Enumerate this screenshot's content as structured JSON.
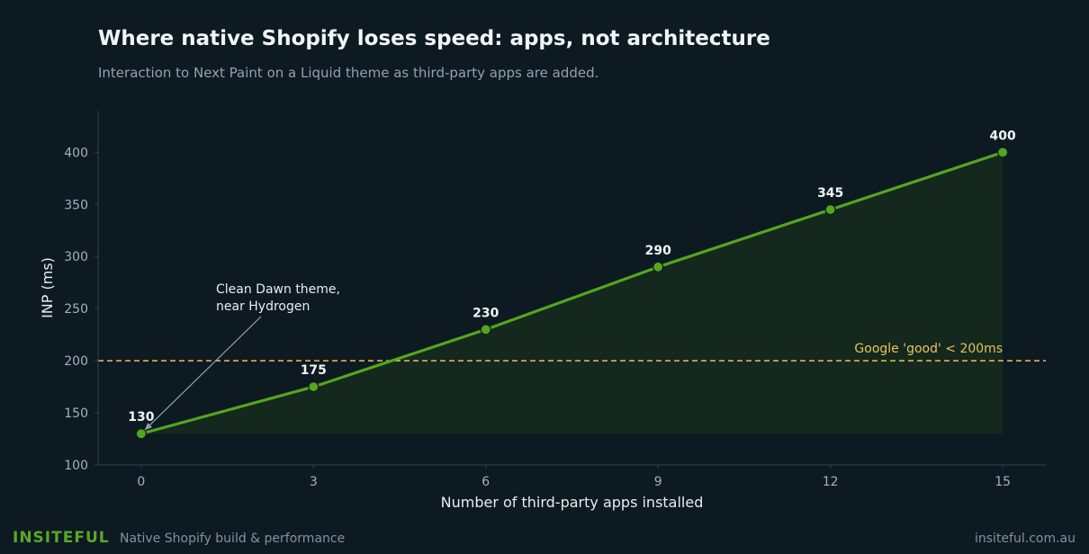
{
  "chart_data": {
    "type": "line",
    "title": "Where native Shopify loses speed: apps, not architecture",
    "subtitle": "Interaction to Next Paint on a Liquid theme as third-party apps are added.",
    "xlabel": "Number of third-party apps installed",
    "ylabel": "INP (ms)",
    "x": [
      0,
      3,
      6,
      9,
      12,
      15
    ],
    "values": [
      130,
      175,
      230,
      290,
      345,
      400
    ],
    "data_labels": [
      "130",
      "175",
      "230",
      "290",
      "345",
      "400"
    ],
    "x_ticks": [
      0,
      3,
      6,
      9,
      12,
      15
    ],
    "y_ticks": [
      100,
      150,
      200,
      250,
      300,
      350,
      400
    ],
    "xlim": [
      -0.75,
      15.75
    ],
    "ylim": [
      100,
      440
    ],
    "grid": false,
    "line_color": "#55a51e",
    "fill_color": "#15291f",
    "reference_line": {
      "value": 200,
      "label": "Google 'good' < 200ms",
      "color": "#e8c35a"
    },
    "annotation": {
      "x": 0,
      "y": 130,
      "text_lines": [
        "Clean Dawn theme,",
        "near Hydrogen"
      ]
    }
  },
  "footer": {
    "brand": "INSITEFUL",
    "tagline": "Native Shopify build & performance",
    "site": "insiteful.com.au"
  }
}
